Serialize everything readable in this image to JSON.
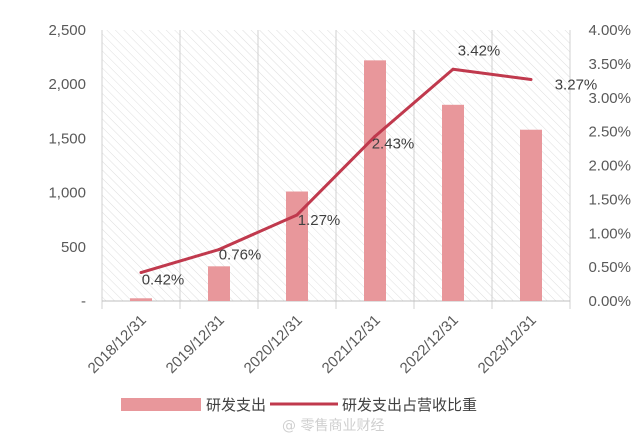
{
  "chart_data": {
    "type": "bar",
    "categories": [
      "2018/12/31",
      "2019/12/31",
      "2020/12/31",
      "2021/12/31",
      "2022/12/31",
      "2023/12/31"
    ],
    "series": [
      {
        "name": "研发支出",
        "type": "bar",
        "axis": "left",
        "color": "#e8979b",
        "values": [
          25,
          320,
          1010,
          2220,
          1810,
          1580
        ]
      },
      {
        "name": "研发支出占营收比重",
        "type": "line",
        "axis": "right",
        "color": "#c0394d",
        "values": [
          0.42,
          0.76,
          1.27,
          2.43,
          3.42,
          3.27
        ],
        "labels": [
          "0.42%",
          "0.76%",
          "1.27%",
          "2.43%",
          "3.42%",
          "3.27%"
        ]
      }
    ],
    "y_left": {
      "ylim": [
        0,
        2500
      ],
      "ticks": [
        "-",
        "500",
        "1,000",
        "1,500",
        "2,000",
        "2,500"
      ]
    },
    "y_right": {
      "ylim": [
        0,
        4
      ],
      "ticks": [
        "0.00%",
        "0.50%",
        "1.00%",
        "1.50%",
        "2.00%",
        "2.50%",
        "3.00%",
        "3.50%",
        "4.00%"
      ]
    },
    "legend_position": "bottom",
    "background_pattern": "diagonal-hatch",
    "watermark": "@ 零售商业财经"
  }
}
